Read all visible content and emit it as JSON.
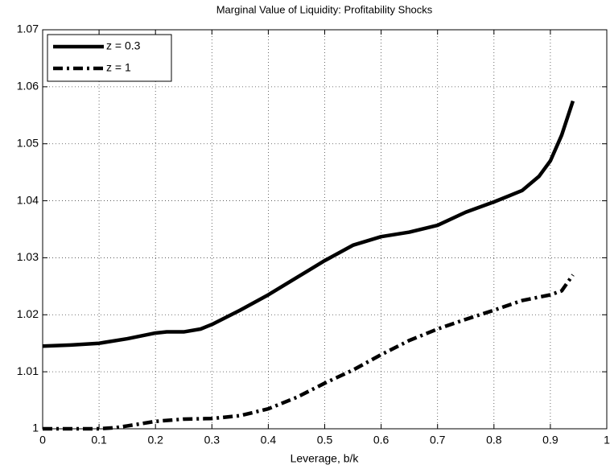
{
  "chart_data": {
    "type": "line",
    "title": "Marginal Value of Liquidity: Profitability Shocks",
    "xlabel": "Leverage, b/k",
    "xlim": [
      0,
      1
    ],
    "ylim": [
      1,
      1.07
    ],
    "xticks": [
      0,
      0.1,
      0.2,
      0.3,
      0.4,
      0.5,
      0.6,
      0.7,
      0.8,
      0.9,
      1
    ],
    "yticks": [
      1,
      1.01,
      1.02,
      1.03,
      1.04,
      1.05,
      1.06,
      1.07
    ],
    "grid": true,
    "legend": "upper left",
    "series": [
      {
        "name": "z = 0.3",
        "color": "#000000",
        "dash": "solid",
        "x": [
          0,
          0.05,
          0.1,
          0.15,
          0.2,
          0.22,
          0.25,
          0.28,
          0.3,
          0.35,
          0.4,
          0.45,
          0.5,
          0.55,
          0.6,
          0.65,
          0.7,
          0.75,
          0.8,
          0.85,
          0.88,
          0.9,
          0.92,
          0.94
        ],
        "values": [
          1.0145,
          1.0147,
          1.015,
          1.0158,
          1.0168,
          1.017,
          1.017,
          1.0175,
          1.0183,
          1.0208,
          1.0235,
          1.0265,
          1.0295,
          1.0322,
          1.0337,
          1.0345,
          1.0357,
          1.038,
          1.0398,
          1.0418,
          1.0443,
          1.047,
          1.0515,
          1.0575
        ]
      },
      {
        "name": "z = 1",
        "color": "#000000",
        "dash": "dashdot",
        "x": [
          0,
          0.1,
          0.13,
          0.15,
          0.2,
          0.25,
          0.3,
          0.35,
          0.4,
          0.45,
          0.5,
          0.55,
          0.6,
          0.65,
          0.7,
          0.75,
          0.8,
          0.85,
          0.9,
          0.92,
          0.94
        ],
        "values": [
          1.0,
          1.0,
          1.0002,
          1.0005,
          1.0013,
          1.0017,
          1.0018,
          1.0023,
          1.0035,
          1.0055,
          1.008,
          1.0103,
          1.013,
          1.0155,
          1.0175,
          1.0192,
          1.0208,
          1.0225,
          1.0235,
          1.0242,
          1.027
        ]
      }
    ]
  }
}
